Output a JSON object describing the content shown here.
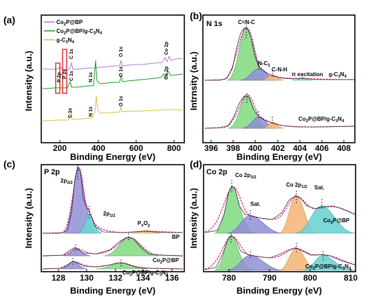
{
  "panels": {
    "a": {
      "tag": "(a)",
      "ylabel": "Intensity (a.u.)",
      "xlabel": "Binding Energy (eV)",
      "xticks": [
        "200",
        "400",
        "600",
        "800"
      ],
      "legend": [
        "Co2P@BP",
        "Co2P@BP/g-C3N4",
        "g-C3N4"
      ],
      "peak_labels": [
        "Co 2p",
        "O 1s",
        "C 1s",
        "P 2p",
        "P 2s",
        "O 1s",
        "N 1s",
        "C 1s",
        "Co 2p",
        "O 1s",
        "N 1s",
        "C 1s"
      ]
    },
    "b": {
      "tag": "(b)",
      "title": "N 1s",
      "ylabel": "Intrnsity (a.u.)",
      "xlabel": "Binding Energy (eV)",
      "xticks": [
        "396",
        "398",
        "400",
        "402",
        "404",
        "406",
        "408"
      ],
      "peak_labels": [
        "C=N-C",
        "N-C3",
        "C-N-H",
        "π excitation",
        "g-C3N4",
        "Co2P@BP/g-C3N4"
      ]
    },
    "c": {
      "tag": "(c)",
      "title": "P 2p",
      "ylabel": "Intensity (a.u.)",
      "xlabel": "Binding Energy (eV)",
      "xticks": [
        "128",
        "130",
        "132",
        "134",
        "136"
      ],
      "peak_labels": [
        "2p3/2",
        "2p1/2",
        "PxOy",
        "BP",
        "Co2P@BP",
        "Co2P@BP/g-C3N4"
      ]
    },
    "d": {
      "tag": "(d)",
      "title": "Co 2p",
      "ylabel": "Intensity (a.u.)",
      "xlabel": "Binding Energy (eV)",
      "xticks": [
        "780",
        "790",
        "800",
        "810"
      ],
      "peak_labels": [
        "Co 2p3/2",
        "Sat.",
        "Co 2p1/2",
        "Sat.",
        "Co2P@BP",
        "Co2P@BP/g-C3N4"
      ]
    }
  },
  "colors": {
    "purple": "#b07ad8",
    "green": "#139c2a",
    "yellow": "#d9bd3a",
    "fit_green": "#7fd97f",
    "fit_blue": "#8f8fd6",
    "fit_orange": "#f5b87a",
    "fit_cyan": "#6fd3d3",
    "envelope": "#e0148c",
    "raw": "#222222",
    "box": "#e02020"
  },
  "chart_data": [
    {
      "type": "line",
      "panel": "a",
      "x_range": [
        100,
        850
      ],
      "series": [
        {
          "name": "Co2P@BP",
          "peaks_eV": [
            130,
            190,
            285,
            532,
            780
          ]
        },
        {
          "name": "Co2P@BP/g-C3N4",
          "peaks_eV": [
            285,
            399,
            532,
            780
          ]
        },
        {
          "name": "g-C3N4",
          "peaks_eV": [
            287,
            399,
            532
          ]
        }
      ]
    },
    {
      "type": "line",
      "panel": "b",
      "x_range": [
        395,
        409
      ],
      "components_eV": {
        "C=N-C": 398.7,
        "N-C3": 400.0,
        "C-N-H": 401.2,
        "π excitation": 404.3
      }
    },
    {
      "type": "line",
      "panel": "c",
      "x_range": [
        127,
        137
      ],
      "components_eV": {
        "2p3/2": 129.8,
        "2p1/2": 130.6,
        "PxOy": 134.0
      }
    },
    {
      "type": "line",
      "panel": "d",
      "x_range": [
        775,
        810
      ],
      "components_eV": {
        "Co 2p3/2": 781.5,
        "Sat.": 786.0,
        "Co 2p1/2": 797.4,
        "Sat. (2)": 803.5
      }
    }
  ]
}
